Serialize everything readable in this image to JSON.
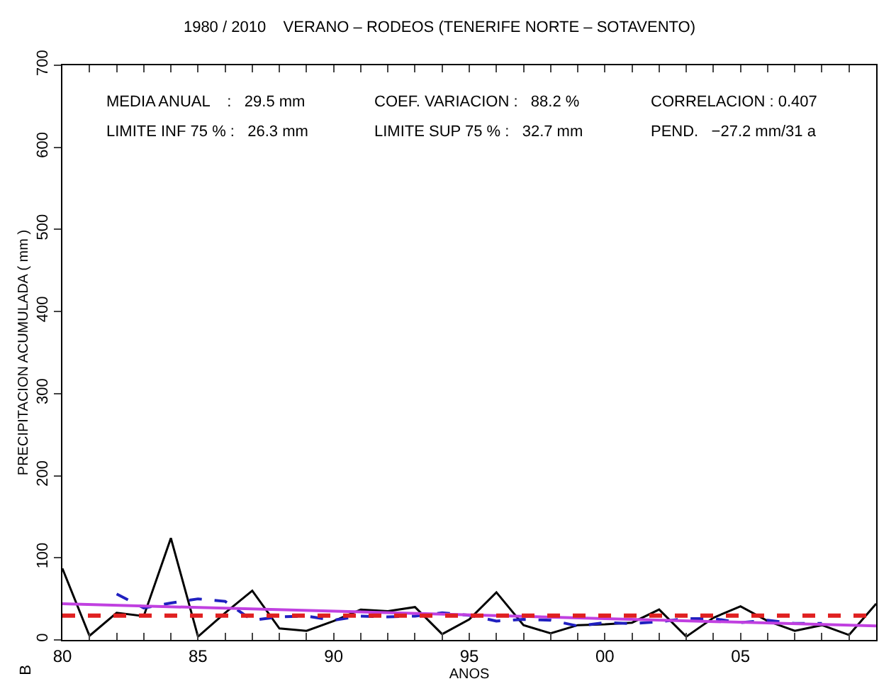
{
  "chart_data": {
    "type": "line",
    "title": "1980 / 2010    VERANO – RODEOS (TENERIFE NORTE – SOTAVENTO)",
    "xlabel": "ANOS",
    "ylabel": "PRECIPITACION ACUMULADA ( mm )",
    "annotations": [
      "MEDIA ANUAL    :   29.5 mm",
      "LIMITE INF 75 % :   26.3 mm",
      "COEF. VARIACION :   88.2 %",
      "LIMITE SUP 75 % :   32.7 mm",
      "CORRELACION : 0.407",
      "PEND.   −27.2 mm/31 a",
      "B"
    ],
    "series": [
      {
        "color": "#000000",
        "x": [
          1980,
          1981,
          1982,
          1983,
          1984,
          1985,
          1986,
          1987,
          1988,
          1989,
          1990,
          1991,
          1992,
          1993,
          1994,
          1995,
          1996,
          1997,
          1998,
          1999,
          2000,
          2001,
          2002,
          2003,
          2004,
          2005,
          2006,
          2007,
          2008,
          2009,
          2010
        ],
        "values": [
          87,
          5,
          33,
          29,
          124,
          4,
          33,
          60,
          14,
          11,
          23,
          37,
          35,
          40,
          7,
          25,
          58,
          18,
          8,
          18,
          19,
          21,
          37,
          4,
          27,
          41,
          23,
          11,
          18,
          6,
          44
        ],
        "line_style": "solid"
      },
      {
        "color": "#2020c0",
        "x": [
          1982,
          1983,
          1984,
          1985,
          1986,
          1987,
          1988,
          1989,
          1990,
          1991,
          1992,
          1993,
          1994,
          1995,
          1996,
          1997,
          1998,
          1999,
          2000,
          2001,
          2002,
          2003,
          2004,
          2005,
          2006,
          2007,
          2008
        ],
        "values": [
          56,
          39,
          45,
          50,
          47,
          24,
          28,
          29,
          24,
          29,
          28,
          29,
          33,
          30,
          23,
          25,
          24,
          17,
          21,
          20,
          22,
          26,
          26,
          21,
          24,
          20,
          20
        ],
        "line_style": "dashed"
      },
      {
        "color": "#c040e0",
        "x": [
          1980,
          2010
        ],
        "values": [
          44,
          17
        ],
        "line_style": "solid"
      }
    ],
    "ref_lines": [
      {
        "axis": "y",
        "value": 29.5,
        "color": "#e02020",
        "line_style": "dashed"
      }
    ],
    "xlim": [
      1980,
      2010
    ],
    "xticks": [
      {
        "value": 1980,
        "label": "80"
      },
      {
        "value": 1981,
        "label": null
      },
      {
        "value": 1982,
        "label": null
      },
      {
        "value": 1983,
        "label": null
      },
      {
        "value": 1984,
        "label": null
      },
      {
        "value": 1985,
        "label": "85"
      },
      {
        "value": 1986,
        "label": null
      },
      {
        "value": 1987,
        "label": null
      },
      {
        "value": 1988,
        "label": null
      },
      {
        "value": 1989,
        "label": null
      },
      {
        "value": 1990,
        "label": "90"
      },
      {
        "value": 1991,
        "label": null
      },
      {
        "value": 1992,
        "label": null
      },
      {
        "value": 1993,
        "label": null
      },
      {
        "value": 1994,
        "label": null
      },
      {
        "value": 1995,
        "label": "95"
      },
      {
        "value": 1996,
        "label": null
      },
      {
        "value": 1997,
        "label": null
      },
      {
        "value": 1998,
        "label": null
      },
      {
        "value": 1999,
        "label": null
      },
      {
        "value": 2000,
        "label": "00"
      },
      {
        "value": 2001,
        "label": null
      },
      {
        "value": 2002,
        "label": null
      },
      {
        "value": 2003,
        "label": null
      },
      {
        "value": 2004,
        "label": null
      },
      {
        "value": 2005,
        "label": "05"
      },
      {
        "value": 2006,
        "label": null
      },
      {
        "value": 2007,
        "label": null
      },
      {
        "value": 2008,
        "label": null
      },
      {
        "value": 2009,
        "label": null
      }
    ],
    "ylim": [
      0,
      700
    ],
    "yticks": [
      0,
      100,
      200,
      300,
      400,
      500,
      600,
      700
    ],
    "marker": "none"
  }
}
